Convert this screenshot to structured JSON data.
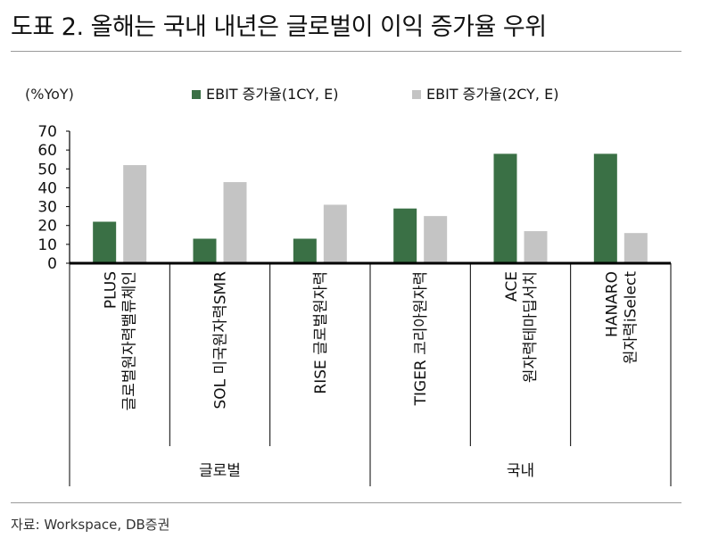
{
  "header": {
    "title": "도표 2. 올해는 국내 내년은 글로벌이 이익 증가율 우위"
  },
  "footer": {
    "source": "자료: Workspace, DB증권"
  },
  "chart_data": {
    "type": "bar",
    "y_unit_label": "(%YoY)",
    "ylim": [
      0,
      70
    ],
    "yticks": [
      0,
      10,
      20,
      30,
      40,
      50,
      60,
      70
    ],
    "grid": false,
    "legend_position": "top",
    "categories": [
      [
        "PLUS",
        "글로벌원자력밸류체인"
      ],
      [
        "SOL 미국원자력SMR"
      ],
      [
        "RISE 글로벌원자력"
      ],
      [
        "TIGER 코리아원자력"
      ],
      [
        "ACE",
        "원자력테마딥서치"
      ],
      [
        "HANARO",
        "원자력iSelect"
      ]
    ],
    "groups": [
      {
        "label": "글로벌",
        "count": 3
      },
      {
        "label": "국내",
        "count": 3
      }
    ],
    "series": [
      {
        "name": "EBIT 증가율(1CY, E)",
        "color": "#3a7045",
        "values": [
          22,
          13,
          13,
          29,
          58,
          58
        ]
      },
      {
        "name": "EBIT 증가율(2CY, E)",
        "color": "#c4c4c4",
        "values": [
          52,
          43,
          31,
          25,
          17,
          16
        ]
      }
    ]
  }
}
